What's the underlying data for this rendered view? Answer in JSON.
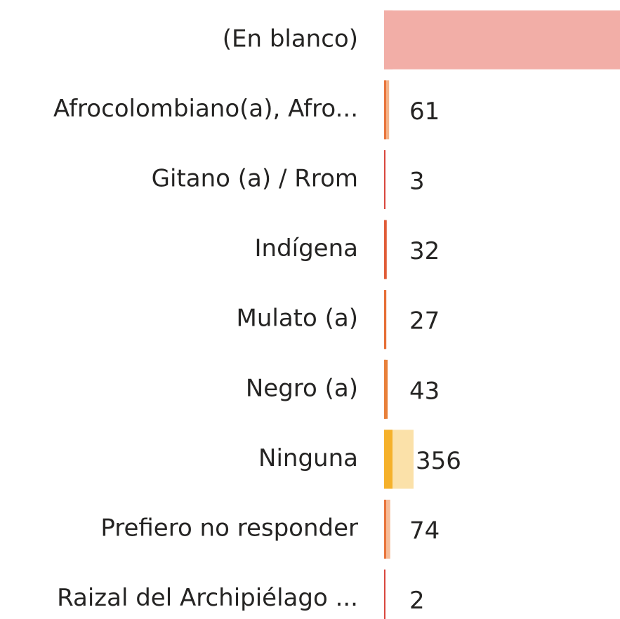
{
  "chart_data": {
    "type": "bar",
    "orientation": "horizontal",
    "categories": [
      "(En blanco)",
      "Afrocolombiano(a), Afro...",
      "Gitano (a) / Rrom",
      "Indígena",
      "Mulato (a)",
      "Negro (a)",
      "Ninguna",
      "Prefiero no responder",
      "Raizal del Archipiélago ..."
    ],
    "values": [
      2850,
      61,
      3,
      32,
      27,
      43,
      356,
      74,
      2
    ],
    "colors": [
      "#f2aea7",
      "#f4b48a",
      "#d9473e",
      "#e05c38",
      "#e66f36",
      "#e8803a",
      "#fbe1a9",
      "#f6bc98",
      "#d9473e"
    ],
    "accent_colors": [
      "#f2aea7",
      "#e8743b",
      "#d9473e",
      "#e05c38",
      "#e66f36",
      "#e8803a",
      "#f5b12b",
      "#e8743b",
      "#d9473e"
    ],
    "xlim": [
      0,
      2850
    ]
  }
}
